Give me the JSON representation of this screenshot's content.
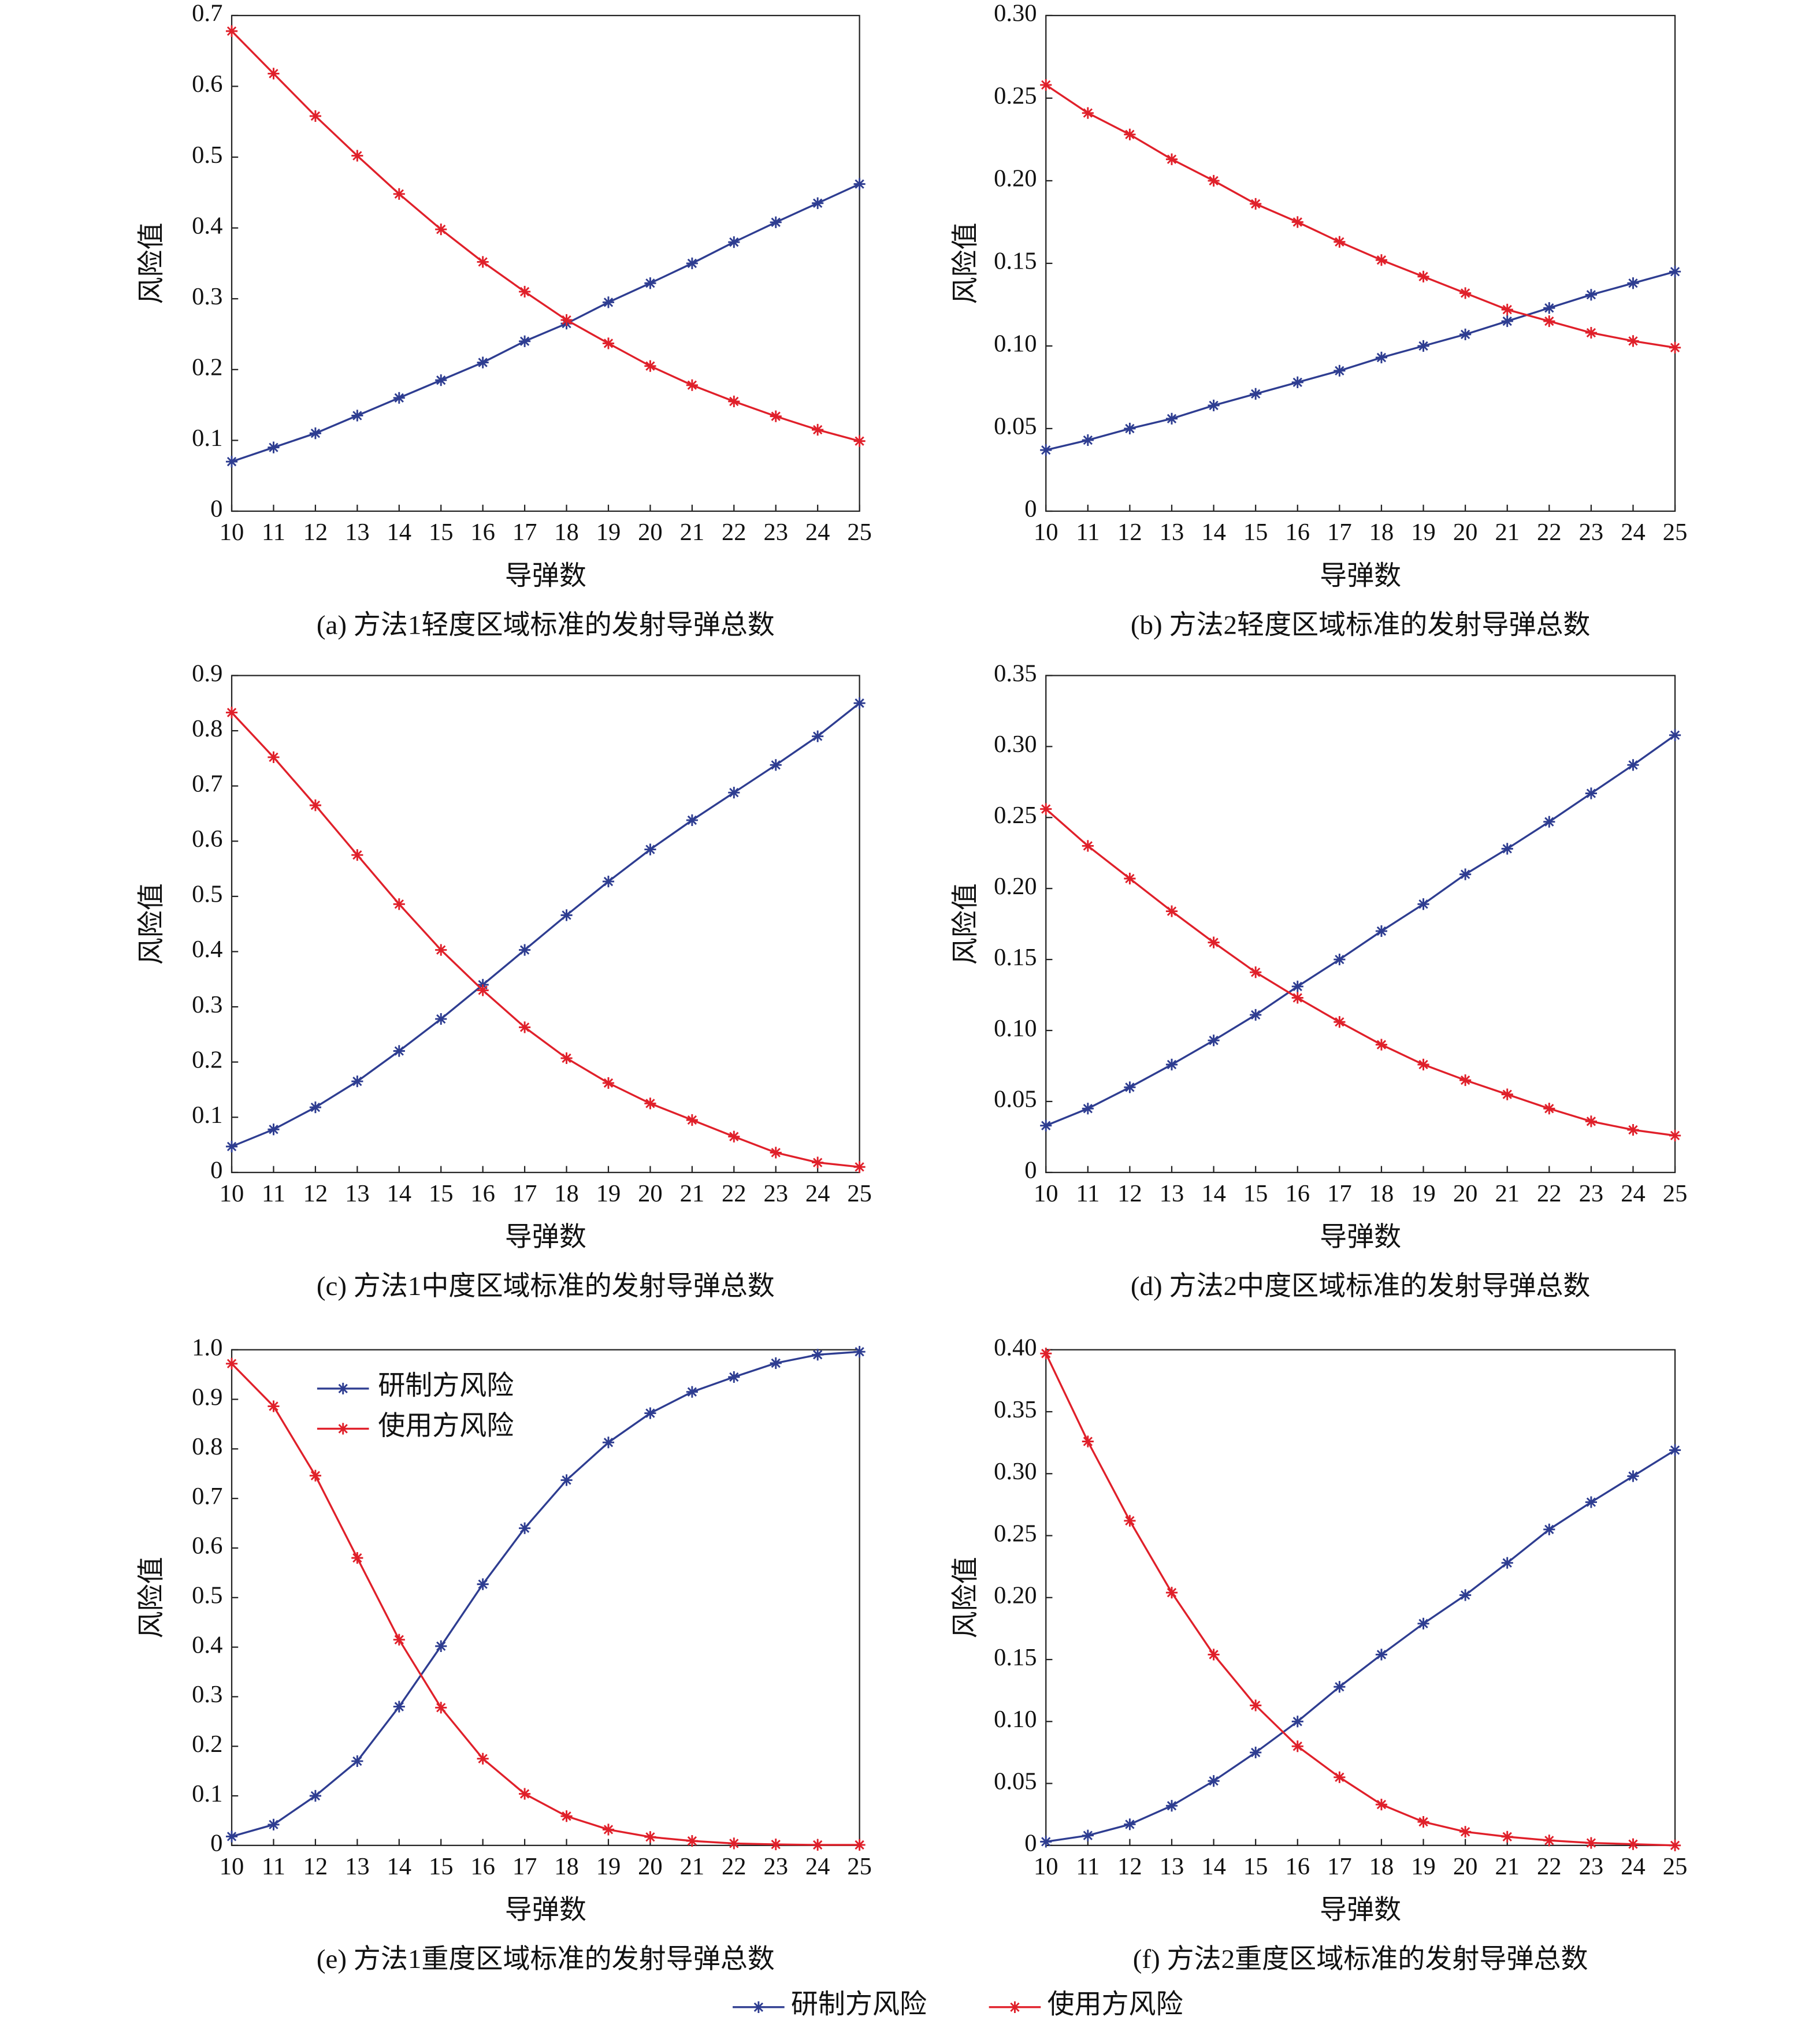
{
  "chart_data": [
    {
      "type": "line",
      "title": "(a) 方法1轻度区域标准的发射导弹总数",
      "x_label": "导弹数",
      "y_label": "风险值",
      "x": [
        10,
        11,
        12,
        13,
        14,
        15,
        16,
        17,
        18,
        19,
        20,
        21,
        22,
        23,
        24,
        25
      ],
      "xlim": [
        10,
        25
      ],
      "xticks": [
        10,
        11,
        12,
        13,
        14,
        15,
        16,
        17,
        18,
        19,
        20,
        21,
        22,
        23,
        24,
        25
      ],
      "ylim": [
        0,
        0.7
      ],
      "yticks": [
        0,
        0.1,
        0.2,
        0.3,
        0.4,
        0.5,
        0.6,
        0.7
      ],
      "series": [
        {
          "name": "研制方风险",
          "color": "#2e3d91",
          "values": [
            0.07,
            0.09,
            0.11,
            0.135,
            0.16,
            0.185,
            0.21,
            0.24,
            0.265,
            0.295,
            0.322,
            0.35,
            0.38,
            0.408,
            0.435,
            0.462
          ]
        },
        {
          "name": "使用方风险",
          "color": "#e0202a",
          "values": [
            0.678,
            0.618,
            0.558,
            0.502,
            0.448,
            0.398,
            0.352,
            0.31,
            0.27,
            0.237,
            0.205,
            0.178,
            0.155,
            0.134,
            0.115,
            0.099
          ]
        }
      ]
    },
    {
      "type": "line",
      "title": "(b) 方法2轻度区域标准的发射导弹总数",
      "x_label": "导弹数",
      "y_label": "风险值",
      "x": [
        10,
        11,
        12,
        13,
        14,
        15,
        16,
        17,
        18,
        19,
        20,
        21,
        22,
        23,
        24,
        25
      ],
      "xlim": [
        10,
        25
      ],
      "xticks": [
        10,
        11,
        12,
        13,
        14,
        15,
        16,
        17,
        18,
        19,
        20,
        21,
        22,
        23,
        24,
        25
      ],
      "ylim": [
        0,
        0.3
      ],
      "yticks": [
        0,
        0.05,
        {
          "value": 0.1,
          "label": "0.10"
        },
        0.15,
        {
          "value": 0.2,
          "label": "0.20"
        },
        0.25,
        {
          "value": 0.3,
          "label": "0.30"
        }
      ],
      "series": [
        {
          "name": "研制方风险",
          "color": "#2e3d91",
          "values": [
            0.037,
            0.043,
            0.05,
            0.056,
            0.064,
            0.071,
            0.078,
            0.085,
            0.093,
            0.1,
            0.107,
            0.115,
            0.123,
            0.131,
            0.138,
            0.145
          ]
        },
        {
          "name": "使用方风险",
          "color": "#e0202a",
          "values": [
            0.258,
            0.241,
            0.228,
            0.213,
            0.2,
            0.186,
            0.175,
            0.163,
            0.152,
            0.142,
            0.132,
            0.122,
            0.115,
            0.108,
            0.103,
            0.099
          ]
        }
      ]
    },
    {
      "type": "line",
      "title": "(c) 方法1中度区域标准的发射导弹总数",
      "x_label": "导弹数",
      "y_label": "风险值",
      "x": [
        10,
        11,
        12,
        13,
        14,
        15,
        16,
        17,
        18,
        19,
        20,
        21,
        22,
        23,
        24,
        25
      ],
      "xlim": [
        10,
        25
      ],
      "xticks": [
        10,
        11,
        12,
        13,
        14,
        15,
        16,
        17,
        18,
        19,
        20,
        21,
        22,
        23,
        24,
        25
      ],
      "ylim": [
        0,
        0.9
      ],
      "yticks": [
        0,
        0.1,
        0.2,
        0.3,
        0.4,
        0.5,
        0.6,
        0.7,
        0.8,
        0.9
      ],
      "series": [
        {
          "name": "研制方风险",
          "color": "#2e3d91",
          "values": [
            0.047,
            0.078,
            0.118,
            0.165,
            0.22,
            0.278,
            0.34,
            0.403,
            0.466,
            0.527,
            0.585,
            0.638,
            0.688,
            0.738,
            0.79,
            0.85
          ]
        },
        {
          "name": "使用方风险",
          "color": "#e0202a",
          "values": [
            0.833,
            0.752,
            0.665,
            0.575,
            0.486,
            0.403,
            0.33,
            0.263,
            0.207,
            0.162,
            0.125,
            0.095,
            0.065,
            0.036,
            0.018,
            0.01
          ]
        }
      ]
    },
    {
      "type": "line",
      "title": "(d) 方法2中度区域标准的发射导弹总数",
      "x_label": "导弹数",
      "y_label": "风险值",
      "x": [
        10,
        11,
        12,
        13,
        14,
        15,
        16,
        17,
        18,
        19,
        20,
        21,
        22,
        23,
        24,
        25
      ],
      "xlim": [
        10,
        25
      ],
      "xticks": [
        10,
        11,
        12,
        13,
        14,
        15,
        16,
        17,
        18,
        19,
        20,
        21,
        22,
        23,
        24,
        25
      ],
      "ylim": [
        0,
        0.35
      ],
      "yticks": [
        0,
        0.05,
        {
          "value": 0.1,
          "label": "0.10"
        },
        0.15,
        {
          "value": 0.2,
          "label": "0.20"
        },
        0.25,
        {
          "value": 0.3,
          "label": "0.30"
        },
        0.35
      ],
      "series": [
        {
          "name": "研制方风险",
          "color": "#2e3d91",
          "values": [
            0.033,
            0.045,
            0.06,
            0.076,
            0.093,
            0.111,
            0.131,
            0.15,
            0.17,
            0.189,
            0.21,
            0.228,
            0.247,
            0.267,
            0.287,
            0.308
          ]
        },
        {
          "name": "使用方风险",
          "color": "#e0202a",
          "values": [
            0.256,
            0.23,
            0.207,
            0.184,
            0.162,
            0.141,
            0.123,
            0.106,
            0.09,
            0.076,
            0.065,
            0.055,
            0.045,
            0.036,
            0.03,
            0.026
          ]
        }
      ]
    },
    {
      "type": "line",
      "title": "(e) 方法1重度区域标准的发射导弹总数",
      "x_label": "导弹数",
      "y_label": "风险值",
      "legend": "upper left",
      "x": [
        10,
        11,
        12,
        13,
        14,
        15,
        16,
        17,
        18,
        19,
        20,
        21,
        22,
        23,
        24,
        25
      ],
      "xlim": [
        10,
        25
      ],
      "xticks": [
        10,
        11,
        12,
        13,
        14,
        15,
        16,
        17,
        18,
        19,
        20,
        21,
        22,
        23,
        24,
        25
      ],
      "ylim": [
        0,
        1
      ],
      "yticks": [
        0,
        0.1,
        0.2,
        0.3,
        0.4,
        0.5,
        0.6,
        0.7,
        0.8,
        0.9,
        {
          "value": 1,
          "label": "1.0"
        }
      ],
      "series": [
        {
          "name": "研制方风险",
          "color": "#2e3d91",
          "values": [
            0.018,
            0.042,
            0.1,
            0.17,
            0.28,
            0.402,
            0.527,
            0.64,
            0.737,
            0.813,
            0.872,
            0.915,
            0.945,
            0.973,
            0.99,
            0.996
          ]
        },
        {
          "name": "使用方风险",
          "color": "#e0202a",
          "values": [
            0.972,
            0.886,
            0.746,
            0.58,
            0.415,
            0.278,
            0.175,
            0.104,
            0.059,
            0.032,
            0.017,
            0.009,
            0.004,
            0.002,
            0.001,
            0.001
          ]
        }
      ]
    },
    {
      "type": "line",
      "title": "(f) 方法2重度区域标准的发射导弹总数",
      "x_label": "导弹数",
      "y_label": "风险值",
      "x": [
        10,
        11,
        12,
        13,
        14,
        15,
        16,
        17,
        18,
        19,
        20,
        21,
        22,
        23,
        24,
        25
      ],
      "xlim": [
        10,
        25
      ],
      "xticks": [
        10,
        11,
        12,
        13,
        14,
        15,
        16,
        17,
        18,
        19,
        20,
        21,
        22,
        23,
        24,
        25
      ],
      "ylim": [
        0,
        0.4
      ],
      "yticks": [
        0,
        0.05,
        {
          "value": 0.1,
          "label": "0.10"
        },
        0.15,
        {
          "value": 0.2,
          "label": "0.20"
        },
        0.25,
        {
          "value": 0.3,
          "label": "0.30"
        },
        0.35,
        {
          "value": 0.4,
          "label": "0.40"
        }
      ],
      "series": [
        {
          "name": "研制方风险",
          "color": "#2e3d91",
          "values": [
            0.003,
            0.008,
            0.017,
            0.032,
            0.052,
            0.075,
            0.1,
            0.128,
            0.154,
            0.179,
            0.202,
            0.228,
            0.255,
            0.277,
            0.298,
            0.319
          ]
        },
        {
          "name": "使用方风险",
          "color": "#e0202a",
          "values": [
            0.397,
            0.326,
            0.262,
            0.204,
            0.154,
            0.113,
            0.08,
            0.055,
            0.033,
            0.019,
            0.011,
            0.007,
            0.004,
            0.002,
            0.001,
            0
          ]
        }
      ]
    }
  ]
}
